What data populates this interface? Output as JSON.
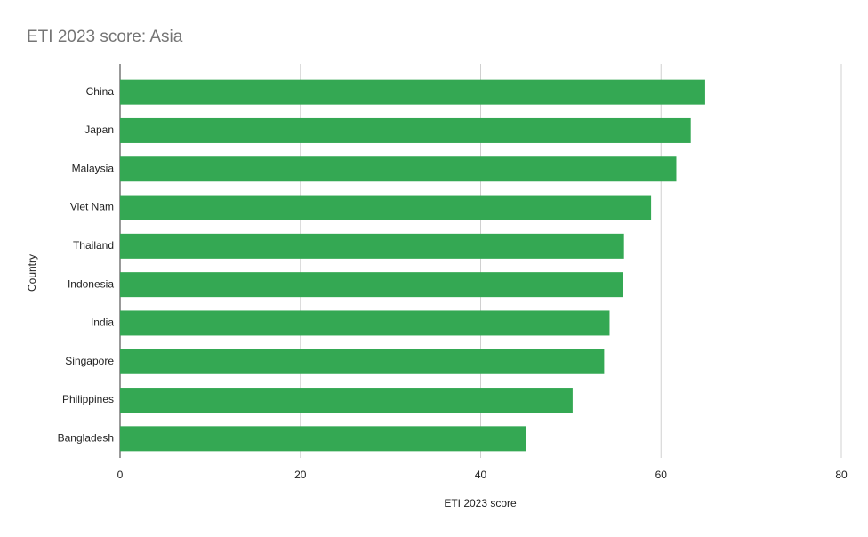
{
  "chart_data": {
    "type": "bar",
    "title": "ETI 2023 score: Asia",
    "x_label": "ETI 2023 score",
    "y_label": "Country",
    "categories": [
      "China",
      "Japan",
      "Malaysia",
      "Viet Nam",
      "Thailand",
      "Indonesia",
      "India",
      "Singapore",
      "Philippines",
      "Bangladesh"
    ],
    "values": [
      64.9,
      63.3,
      61.7,
      58.9,
      55.9,
      55.8,
      54.3,
      53.7,
      50.2,
      45.0
    ],
    "color": "#34a853",
    "xlim": [
      0,
      80
    ],
    "xticks": [
      0,
      20,
      40,
      60,
      80
    ],
    "grid": true
  }
}
